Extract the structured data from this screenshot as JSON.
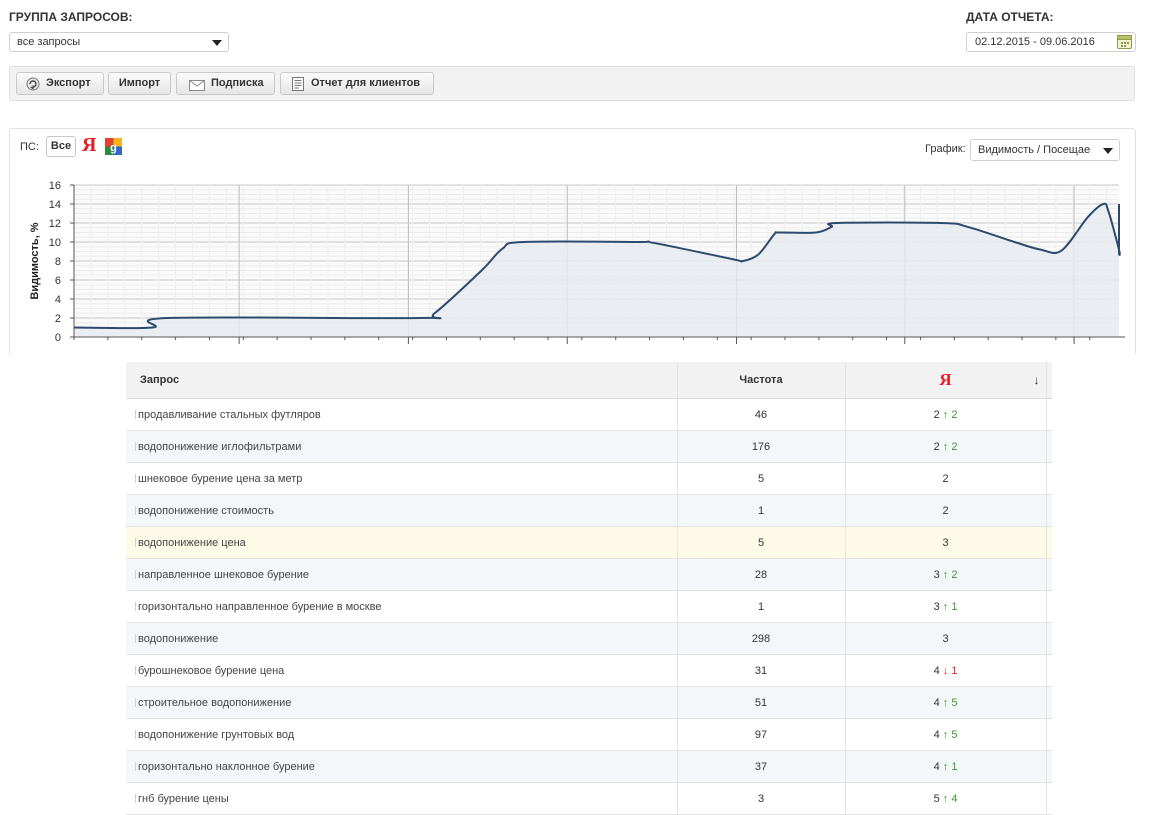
{
  "filters": {
    "group_label": "ГРУППА ЗАПРОСОВ:",
    "group_value": "все запросы",
    "date_label": "ДАТА ОТЧЕТА:",
    "date_value": "02.12.2015 - 09.06.2016"
  },
  "toolbar": {
    "export_label": "Экспорт",
    "import_label": "Импорт",
    "subscribe_label": "Подписка",
    "client_report_label": "Отчет для клиентов"
  },
  "chart_panel": {
    "ps_label": "ПС:",
    "all_label": "Все",
    "yandex_icon_text": "Я",
    "graph_label": "График:",
    "graph_value": "Видимость / Посещаемо"
  },
  "chart_data": {
    "type": "area",
    "ylabel": "Видимость, %",
    "ylim": [
      0,
      16
    ],
    "yticks": [
      0,
      2,
      4,
      6,
      8,
      10,
      12,
      14,
      16
    ],
    "x_tick_labels": [],
    "grid": true,
    "series": [
      {
        "color": "#2c4a6e",
        "fill": "#e6ebf0",
        "points": [
          [
            0,
            1
          ],
          [
            0.075,
            1
          ],
          [
            0.09,
            2
          ],
          [
            0.33,
            2
          ],
          [
            0.345,
            2.5
          ],
          [
            0.39,
            7
          ],
          [
            0.41,
            9.3
          ],
          [
            0.43,
            10
          ],
          [
            0.54,
            10
          ],
          [
            0.555,
            9.9
          ],
          [
            0.63,
            8.2
          ],
          [
            0.64,
            8
          ],
          [
            0.655,
            8.7
          ],
          [
            0.67,
            10.8
          ],
          [
            0.675,
            11
          ],
          [
            0.71,
            11
          ],
          [
            0.725,
            11.6
          ],
          [
            0.73,
            12
          ],
          [
            0.83,
            12
          ],
          [
            0.855,
            11.6
          ],
          [
            0.9,
            10
          ],
          [
            0.925,
            9.2
          ],
          [
            0.945,
            9.1
          ],
          [
            0.97,
            12.6
          ],
          [
            0.985,
            14
          ],
          [
            0.99,
            13.2
          ],
          [
            1.005,
            9.2
          ],
          [
            1.015,
            9
          ],
          [
            1.03,
            12.4
          ],
          [
            1.045,
            14
          ]
        ]
      }
    ]
  },
  "table": {
    "headers": [
      "Запрос",
      "Частота",
      "Я",
      "↓"
    ],
    "rows": [
      {
        "query": "продавливание стальных футляров",
        "freq": "46",
        "pos": "2",
        "arrow": "↑",
        "delta": "2",
        "dir": "up"
      },
      {
        "query": "водопонижение иглофильтрами",
        "freq": "176",
        "pos": "2",
        "arrow": "↑",
        "delta": "2",
        "dir": "up"
      },
      {
        "query": "шнековое бурение цена за метр",
        "freq": "5",
        "pos": "2",
        "arrow": "",
        "delta": "",
        "dir": ""
      },
      {
        "query": "водопонижение стоимость",
        "freq": "1",
        "pos": "2",
        "arrow": "",
        "delta": "",
        "dir": ""
      },
      {
        "query": "водопонижение цена",
        "freq": "5",
        "pos": "3",
        "arrow": "",
        "delta": "",
        "dir": ""
      },
      {
        "query": "направленное шнековое бурение",
        "freq": "28",
        "pos": "3",
        "arrow": "↑",
        "delta": "2",
        "dir": "up"
      },
      {
        "query": "горизонтально направленное бурение в москве",
        "freq": "1",
        "pos": "3",
        "arrow": "↑",
        "delta": "1",
        "dir": "up"
      },
      {
        "query": "водопонижение",
        "freq": "298",
        "pos": "3",
        "arrow": "",
        "delta": "",
        "dir": ""
      },
      {
        "query": "бурошнековое бурение цена",
        "freq": "31",
        "pos": "4",
        "arrow": "↓",
        "delta": "1",
        "dir": "down"
      },
      {
        "query": "строительное водопонижение",
        "freq": "51",
        "pos": "4",
        "arrow": "↑",
        "delta": "5",
        "dir": "up"
      },
      {
        "query": "водопонижение грунтовых вод",
        "freq": "97",
        "pos": "4",
        "arrow": "↑",
        "delta": "5",
        "dir": "up"
      },
      {
        "query": "горизонтально наклонное бурение",
        "freq": "37",
        "pos": "4",
        "arrow": "↑",
        "delta": "1",
        "dir": "up"
      },
      {
        "query": "гнб бурение цены",
        "freq": "3",
        "pos": "5",
        "arrow": "↑",
        "delta": "4",
        "dir": "up"
      }
    ]
  }
}
